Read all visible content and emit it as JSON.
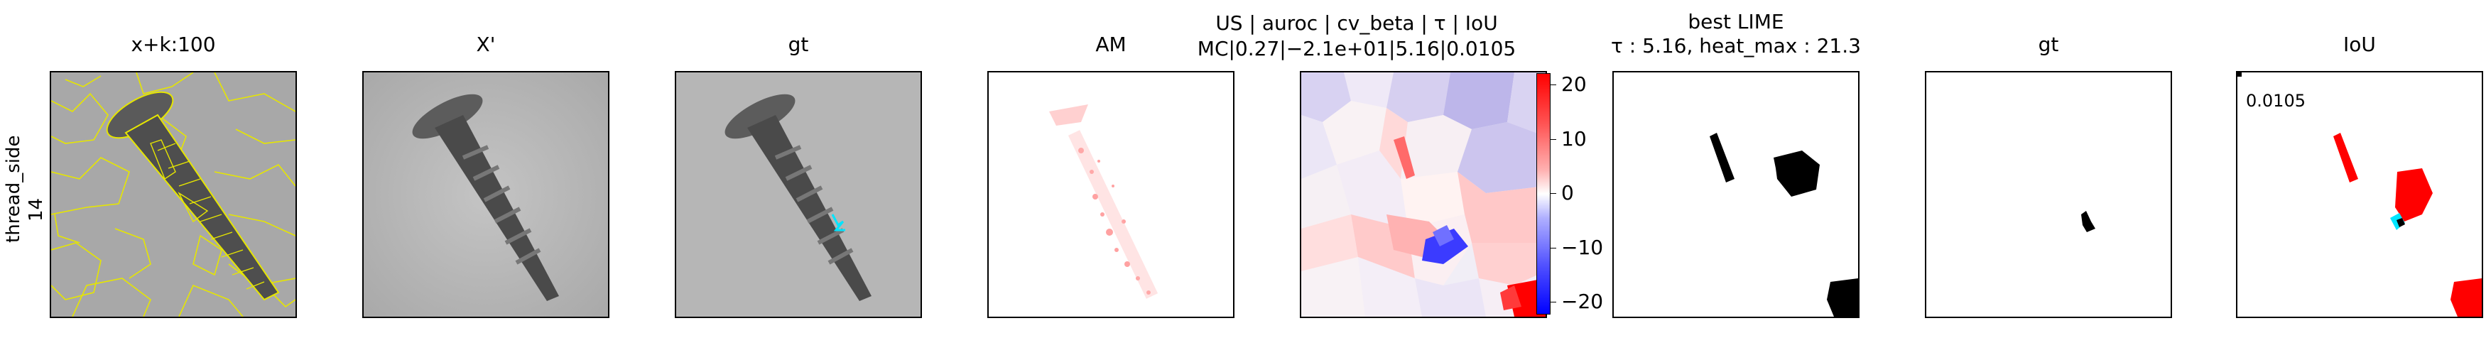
{
  "row_label": {
    "line1": "thread_side",
    "line2": "14"
  },
  "panels": [
    {
      "title": "x+k:100"
    },
    {
      "title": "X'"
    },
    {
      "title": "gt"
    },
    {
      "title": "AM"
    },
    {
      "title_line1": "US | auroc | cv_beta | τ | IoU",
      "title_line2": "MC|0.27|−2.1e+01|5.16|0.0105"
    },
    {
      "title_line1": "best LIME",
      "title_line2": "τ : 5.16, heat_max : 21.3"
    },
    {
      "title": "gt"
    },
    {
      "title": "IoU",
      "annotation": "0.0105"
    }
  ],
  "colorbar": {
    "ticks": [
      "20",
      "10",
      "0",
      "−10",
      "−20"
    ],
    "vmin": -21.3,
    "vmax": 21.3,
    "colormap": "bwr"
  },
  "colors": {
    "overlay_lines": "#e6e600",
    "gt_mark": "#00e5ff",
    "positive": "#ff0000",
    "negative": "#0000ff"
  }
}
